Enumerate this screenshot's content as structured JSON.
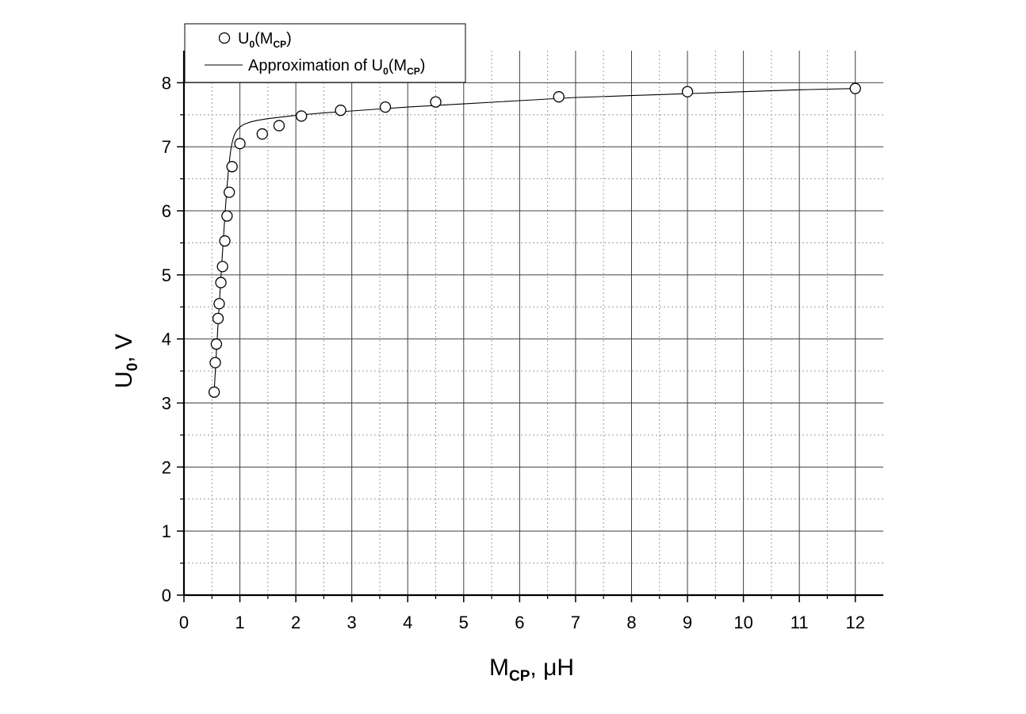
{
  "chart_data": {
    "type": "scatter",
    "xlabel": {
      "main": "M",
      "sub": "CP",
      "rest": ", μH"
    },
    "ylabel": {
      "main": "U",
      "sub": "0",
      "rest": ", V"
    },
    "xlim": [
      0,
      12.5
    ],
    "ylim": [
      0,
      8.5
    ],
    "xticks": [
      "0",
      "1",
      "2",
      "3",
      "4",
      "5",
      "6",
      "7",
      "8",
      "9",
      "10",
      "11",
      "12"
    ],
    "yticks": [
      "0",
      "1",
      "2",
      "3",
      "4",
      "5",
      "6",
      "7",
      "8"
    ],
    "grid": {
      "major": true,
      "minor": true
    },
    "legend": {
      "position": "top-left",
      "entries": [
        {
          "marker": "circle",
          "text_main": "U",
          "text_sub1": "0",
          "text_mid": "(M",
          "text_sub2": "CP",
          "text_end": ")"
        },
        {
          "marker": "line",
          "text_main": "Approximation of U",
          "text_sub1": "0",
          "text_mid": "(M",
          "text_sub2": "CP",
          "text_end": ")"
        }
      ]
    },
    "series": [
      {
        "name": "U0(MCP)",
        "kind": "points",
        "x": [
          0.54,
          0.56,
          0.58,
          0.61,
          0.63,
          0.66,
          0.69,
          0.73,
          0.77,
          0.81,
          0.86,
          1.0,
          1.4,
          1.7,
          2.1,
          2.8,
          3.6,
          4.5,
          6.7,
          9.0,
          12.0
        ],
        "y": [
          3.17,
          3.63,
          3.92,
          4.32,
          4.55,
          4.88,
          5.13,
          5.53,
          5.92,
          6.29,
          6.69,
          7.05,
          7.2,
          7.33,
          7.48,
          7.57,
          7.62,
          7.7,
          7.78,
          7.86,
          7.91
        ]
      },
      {
        "name": "Approximation of U0(MCP)",
        "kind": "line",
        "x": [
          0.54,
          0.56,
          0.58,
          0.6,
          0.62,
          0.64,
          0.66,
          0.68,
          0.7,
          0.72,
          0.74,
          0.76,
          0.78,
          0.8,
          0.82,
          0.84,
          0.86,
          0.88,
          0.9,
          0.92,
          0.95,
          1.0,
          1.05,
          1.1,
          1.2,
          1.3,
          1.5,
          1.7,
          2.0,
          2.5,
          3.0,
          3.5,
          4.0,
          5.0,
          6.0,
          7.0,
          8.0,
          9.0,
          10.0,
          11.0,
          12.0
        ],
        "y": [
          3.17,
          3.48,
          3.79,
          4.08,
          4.38,
          4.67,
          4.95,
          5.23,
          5.5,
          5.76,
          6.02,
          6.26,
          6.48,
          6.67,
          6.84,
          6.97,
          7.06,
          7.13,
          7.18,
          7.22,
          7.26,
          7.31,
          7.34,
          7.36,
          7.39,
          7.41,
          7.44,
          7.46,
          7.49,
          7.53,
          7.56,
          7.59,
          7.62,
          7.67,
          7.72,
          7.77,
          7.8,
          7.83,
          7.86,
          7.89,
          7.91
        ]
      }
    ]
  }
}
